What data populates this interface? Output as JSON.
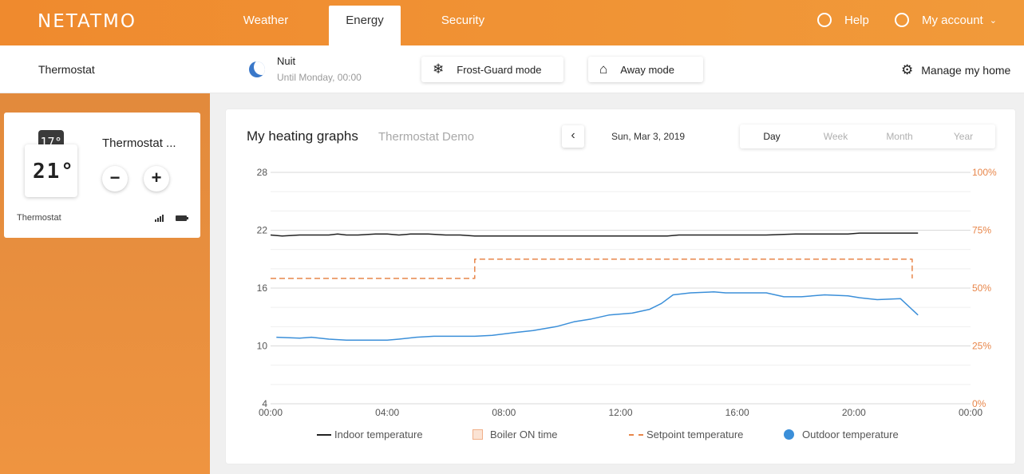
{
  "header": {
    "logo": "NETATMO",
    "tabs": [
      {
        "label": "Weather"
      },
      {
        "label": "Energy"
      },
      {
        "label": "Security"
      }
    ],
    "help_label": "Help",
    "account_label": "My account"
  },
  "subheader": {
    "title": "Thermostat",
    "current_mode": "Nuit",
    "current_mode_until": "Until Monday, 00:00",
    "frost_guard_label": "Frost-Guard mode",
    "away_label": "Away mode",
    "manage_label": "Manage my home"
  },
  "device_card": {
    "display_top": "17°",
    "display_temp": "21°",
    "name": "Thermostat ...",
    "label": "Thermostat",
    "minus_label": "−",
    "plus_label": "+"
  },
  "graph": {
    "title": "My heating graphs",
    "subtitle": "Thermostat Demo",
    "prev_label": "‹",
    "date": "Sun, Mar 3, 2019",
    "periods": [
      {
        "label": "Day"
      },
      {
        "label": "Week"
      },
      {
        "label": "Month"
      },
      {
        "label": "Year"
      }
    ],
    "selected_period": "Day"
  },
  "chart_data": {
    "type": "line",
    "x_ticks": [
      "00:00",
      "04:00",
      "08:00",
      "12:00",
      "16:00",
      "20:00",
      "00:00"
    ],
    "x_range_hours": [
      0,
      24
    ],
    "y_left_ticks": [
      "28",
      "22",
      "16",
      "10",
      "4"
    ],
    "y_left_range": [
      4,
      28
    ],
    "y_right_ticks": [
      "100%",
      "75%",
      "50%",
      "25%",
      "0%"
    ],
    "y_right_range": [
      0,
      100
    ],
    "grid": true,
    "legend_position": "bottom",
    "series": [
      {
        "name": "Indoor temperature",
        "color": "#222222",
        "style": "solid",
        "axis": "left",
        "x": [
          0,
          0.4,
          1,
          2,
          2.3,
          2.6,
          3,
          3.6,
          4,
          4.4,
          4.8,
          5.4,
          6,
          6.5,
          7,
          8,
          10,
          12,
          13.6,
          14,
          16,
          17,
          18,
          19,
          19.8,
          20.2,
          21,
          22.2
        ],
        "y": [
          21.5,
          21.4,
          21.5,
          21.5,
          21.6,
          21.5,
          21.5,
          21.6,
          21.6,
          21.5,
          21.6,
          21.6,
          21.5,
          21.5,
          21.4,
          21.4,
          21.4,
          21.4,
          21.4,
          21.5,
          21.5,
          21.5,
          21.6,
          21.6,
          21.6,
          21.7,
          21.7,
          21.7
        ]
      },
      {
        "name": "Setpoint temperature",
        "color": "#e8864a",
        "style": "dashed",
        "axis": "left",
        "x": [
          0,
          7,
          7,
          22,
          22
        ],
        "y": [
          17,
          17,
          19,
          19,
          17
        ]
      },
      {
        "name": "Outdoor temperature",
        "color": "#3b8fd9",
        "style": "solid",
        "axis": "left",
        "x": [
          0.2,
          1,
          1.4,
          2,
          2.6,
          3,
          4,
          4.4,
          5,
          5.6,
          6.5,
          7,
          7.6,
          8.4,
          9,
          9.8,
          10.4,
          11,
          11.6,
          12.4,
          13,
          13.4,
          13.8,
          14.4,
          15.2,
          15.6,
          16.4,
          17,
          17.6,
          18.2,
          19,
          19.8,
          20.2,
          20.8,
          21.6,
          22.2
        ],
        "y": [
          10.9,
          10.8,
          10.9,
          10.7,
          10.6,
          10.6,
          10.6,
          10.7,
          10.9,
          11,
          11,
          11,
          11.1,
          11.4,
          11.6,
          12,
          12.5,
          12.8,
          13.2,
          13.4,
          13.8,
          14.4,
          15.3,
          15.5,
          15.6,
          15.5,
          15.5,
          15.5,
          15.1,
          15.1,
          15.3,
          15.2,
          15,
          14.8,
          14.9,
          13.2
        ]
      },
      {
        "name": "Boiler ON time",
        "color": "#f4c2a4",
        "style": "bar",
        "axis": "right",
        "x": [],
        "y": []
      }
    ]
  }
}
